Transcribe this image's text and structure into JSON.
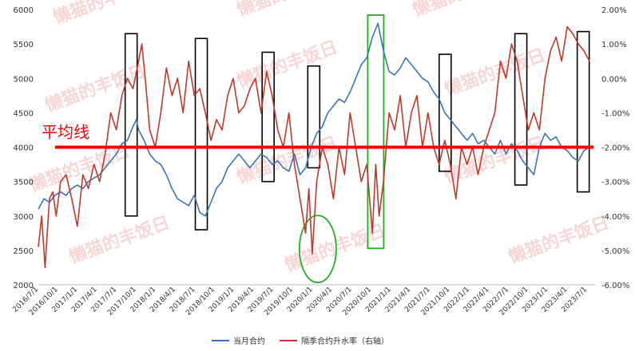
{
  "chart_data": {
    "type": "line",
    "left_axis": {
      "min": 2000,
      "max": 6000,
      "ticks": [
        "2000",
        "2500",
        "3000",
        "3500",
        "4000",
        "4500",
        "5000",
        "5500",
        "6000"
      ]
    },
    "right_axis": {
      "min": -6,
      "max": 2,
      "unit": "%",
      "ticks": [
        "-6.00%",
        "-5.00%",
        "-4.00%",
        "-3.00%",
        "-2.00%",
        "-1.00%",
        "0.00%",
        "1.00%",
        "2.00%"
      ]
    },
    "x_ticks": [
      "2016/7/1",
      "2016/10/1",
      "2017/1/1",
      "2017/4/1",
      "2017/7/1",
      "2017/10/1",
      "2018/1/1",
      "2018/4/1",
      "2018/7/1",
      "2018/10/1",
      "2019/1/1",
      "2019/4/1",
      "2019/7/1",
      "2019/10/1",
      "2020/1/1",
      "2020/4/1",
      "2020/7/1",
      "2020/10/1",
      "2021/1/1",
      "2021/4/1",
      "2021/7/1",
      "2021/10/1",
      "2022/1/1",
      "2022/4/1",
      "2022/7/1",
      "2022/10/1",
      "2023/1/1",
      "2023/4/1",
      "2023/7/1"
    ],
    "series": [
      {
        "name": "当月合约",
        "axis": "left",
        "color": "#3b73b9",
        "points": [
          [
            0,
            3100
          ],
          [
            0.5,
            3250
          ],
          [
            1,
            3200
          ],
          [
            1.5,
            3300
          ],
          [
            2,
            3350
          ],
          [
            2.5,
            3300
          ],
          [
            3,
            3400
          ],
          [
            3.5,
            3450
          ],
          [
            4,
            3400
          ],
          [
            4.5,
            3500
          ],
          [
            5,
            3550
          ],
          [
            5.5,
            3600
          ],
          [
            6,
            3700
          ],
          [
            6.5,
            3800
          ],
          [
            7,
            3900
          ],
          [
            7.5,
            4050
          ],
          [
            8,
            4100
          ],
          [
            8.5,
            4300
          ],
          [
            8.8,
            4400
          ],
          [
            9,
            4250
          ],
          [
            9.5,
            4100
          ],
          [
            10,
            3900
          ],
          [
            10.5,
            3800
          ],
          [
            11,
            3750
          ],
          [
            11.5,
            3600
          ],
          [
            12,
            3400
          ],
          [
            12.5,
            3250
          ],
          [
            13,
            3200
          ],
          [
            13.5,
            3150
          ],
          [
            14,
            3300
          ],
          [
            14.5,
            3050
          ],
          [
            15,
            3000
          ],
          [
            15.5,
            3200
          ],
          [
            16,
            3400
          ],
          [
            16.5,
            3500
          ],
          [
            17,
            3700
          ],
          [
            17.5,
            3800
          ],
          [
            18,
            3900
          ],
          [
            18.5,
            3800
          ],
          [
            19,
            3700
          ],
          [
            19.5,
            3800
          ],
          [
            20,
            3900
          ],
          [
            20.5,
            3850
          ],
          [
            21,
            3750
          ],
          [
            21.5,
            3800
          ],
          [
            22,
            3700
          ],
          [
            22.5,
            3650
          ],
          [
            23,
            3900
          ],
          [
            23.5,
            3600
          ],
          [
            24,
            3700
          ],
          [
            24.5,
            4000
          ],
          [
            25,
            4200
          ],
          [
            25.5,
            4300
          ],
          [
            26,
            4500
          ],
          [
            26.5,
            4600
          ],
          [
            27,
            4700
          ],
          [
            27.5,
            4650
          ],
          [
            28,
            4800
          ],
          [
            28.5,
            5000
          ],
          [
            29,
            5200
          ],
          [
            29.5,
            5300
          ],
          [
            30,
            5600
          ],
          [
            30.5,
            5800
          ],
          [
            31,
            5400
          ],
          [
            31.5,
            5100
          ],
          [
            32,
            5050
          ],
          [
            32.5,
            5150
          ],
          [
            33,
            5300
          ],
          [
            33.5,
            5200
          ],
          [
            34,
            5100
          ],
          [
            34.5,
            5000
          ],
          [
            35,
            4950
          ],
          [
            35.5,
            4800
          ],
          [
            36,
            4700
          ],
          [
            36.5,
            4500
          ],
          [
            37,
            4400
          ],
          [
            37.5,
            4300
          ],
          [
            38,
            4200
          ],
          [
            38.5,
            4100
          ],
          [
            39,
            4200
          ],
          [
            39.5,
            4050
          ],
          [
            40,
            4100
          ],
          [
            40.5,
            4000
          ],
          [
            41,
            3900
          ],
          [
            41.5,
            4100
          ],
          [
            42,
            3900
          ],
          [
            42.5,
            4050
          ],
          [
            43,
            3950
          ],
          [
            43.5,
            3800
          ],
          [
            44,
            3700
          ],
          [
            44.5,
            3600
          ],
          [
            45,
            4000
          ],
          [
            45.5,
            4200
          ],
          [
            46,
            4100
          ],
          [
            46.5,
            4150
          ],
          [
            47,
            4000
          ],
          [
            47.5,
            3950
          ],
          [
            48,
            3850
          ],
          [
            48.5,
            3800
          ],
          [
            49,
            3950
          ],
          [
            49.5,
            4000
          ]
        ]
      },
      {
        "name": "隔季合约升水率（右轴）",
        "axis": "right",
        "color": "#c0392b",
        "points": [
          [
            0,
            -4.9
          ],
          [
            0.3,
            -4.0
          ],
          [
            0.6,
            -5.5
          ],
          [
            1,
            -3.5
          ],
          [
            1.3,
            -3.3
          ],
          [
            1.6,
            -4.0
          ],
          [
            2,
            -3.0
          ],
          [
            2.5,
            -2.8
          ],
          [
            3,
            -3.5
          ],
          [
            3.5,
            -4.3
          ],
          [
            4,
            -2.8
          ],
          [
            4.5,
            -3.2
          ],
          [
            5,
            -2.5
          ],
          [
            5.5,
            -3.0
          ],
          [
            6,
            -2.2
          ],
          [
            6.5,
            -1.0
          ],
          [
            7,
            -1.5
          ],
          [
            7.5,
            -0.5
          ],
          [
            8,
            0.0
          ],
          [
            8.5,
            -0.3
          ],
          [
            9,
            0.5
          ],
          [
            9.3,
            1.0
          ],
          [
            9.6,
            0.0
          ],
          [
            10,
            -1.5
          ],
          [
            10.5,
            -2.0
          ],
          [
            11,
            -1.0
          ],
          [
            11.5,
            0.3
          ],
          [
            12,
            -0.5
          ],
          [
            12.5,
            0.0
          ],
          [
            13,
            -1.0
          ],
          [
            13.5,
            0.5
          ],
          [
            14,
            -0.5
          ],
          [
            14.5,
            -0.3
          ],
          [
            15,
            -1.0
          ],
          [
            15.5,
            -1.8
          ],
          [
            16,
            -1.2
          ],
          [
            16.5,
            -1.5
          ],
          [
            17,
            -0.5
          ],
          [
            17.5,
            0.0
          ],
          [
            18,
            -1.0
          ],
          [
            18.5,
            -0.8
          ],
          [
            19,
            -0.3
          ],
          [
            19.5,
            0.0
          ],
          [
            20,
            -1.0
          ],
          [
            20.5,
            0.2
          ],
          [
            21,
            -0.5
          ],
          [
            21.5,
            -1.5
          ],
          [
            22,
            -2.0
          ],
          [
            22.5,
            -1.0
          ],
          [
            23,
            -2.5
          ],
          [
            23.5,
            -3.5
          ],
          [
            24,
            -4.5
          ],
          [
            24.3,
            -3.2
          ],
          [
            24.6,
            -5.1
          ],
          [
            25,
            -3.0
          ],
          [
            25.5,
            -2.0
          ],
          [
            26,
            -2.5
          ],
          [
            26.5,
            -3.5
          ],
          [
            27,
            -2.0
          ],
          [
            27.5,
            -2.8
          ],
          [
            28,
            -1.0
          ],
          [
            28.5,
            -2.0
          ],
          [
            29,
            -3.0
          ],
          [
            29.5,
            -2.5
          ],
          [
            30,
            -4.5
          ],
          [
            30.3,
            -2.5
          ],
          [
            30.6,
            -4.0
          ],
          [
            31,
            -3.0
          ],
          [
            31.5,
            -1.0
          ],
          [
            32,
            -1.5
          ],
          [
            32.5,
            -0.5
          ],
          [
            33,
            -2.0
          ],
          [
            33.5,
            -1.0
          ],
          [
            34,
            -0.5
          ],
          [
            34.5,
            -2.0
          ],
          [
            35,
            -1.0
          ],
          [
            35.5,
            -2.0
          ],
          [
            36,
            -2.5
          ],
          [
            36.5,
            -1.8
          ],
          [
            37,
            -2.5
          ],
          [
            37.5,
            -3.5
          ],
          [
            38,
            -2.0
          ],
          [
            38.5,
            -2.5
          ],
          [
            39,
            -2.0
          ],
          [
            39.5,
            -2.8
          ],
          [
            40,
            -2.0
          ],
          [
            40.5,
            -1.5
          ],
          [
            41,
            -1.0
          ],
          [
            41.5,
            0.5
          ],
          [
            42,
            0.0
          ],
          [
            42.5,
            1.0
          ],
          [
            43,
            0.5
          ],
          [
            43.5,
            -0.5
          ],
          [
            44,
            -1.5
          ],
          [
            44.5,
            -1.0
          ],
          [
            45,
            -1.5
          ],
          [
            45.5,
            0.0
          ],
          [
            46,
            0.8
          ],
          [
            46.5,
            1.2
          ],
          [
            47,
            0.5
          ],
          [
            47.5,
            1.5
          ],
          [
            48,
            1.3
          ],
          [
            48.5,
            1.0
          ],
          [
            49,
            0.8
          ],
          [
            49.5,
            0.5
          ]
        ]
      }
    ],
    "reference_line": {
      "label": "平均线",
      "value": -2.0,
      "axis": "right",
      "color": "#ff0000"
    },
    "watermark": "懒猫的丰饭日",
    "legend": {
      "position": "bottom-center"
    },
    "grid": false
  }
}
